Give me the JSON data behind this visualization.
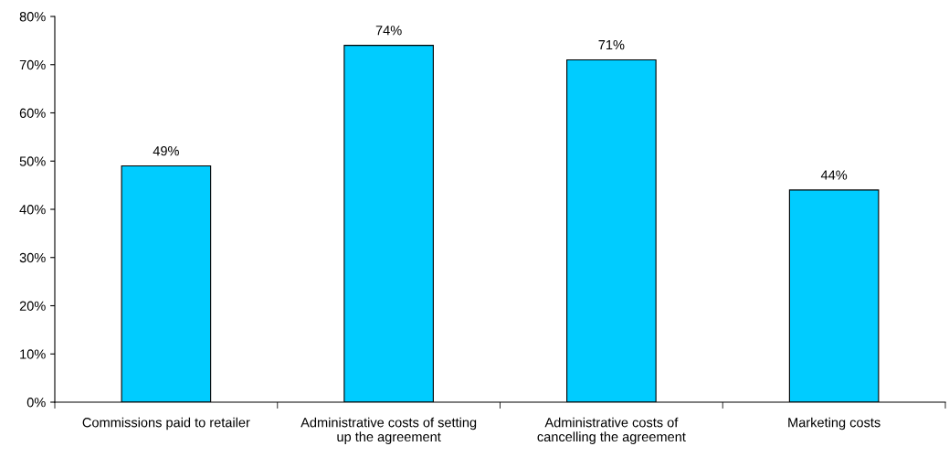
{
  "chart_data": {
    "type": "bar",
    "categories": [
      "Commissions paid to retailer",
      "Administrative costs of setting\nup the agreement",
      "Administrative costs of\ncancelling the agreement",
      "Marketing costs"
    ],
    "values": [
      49,
      74,
      71,
      44
    ],
    "value_labels": [
      "49%",
      "74%",
      "71%",
      "44%"
    ],
    "color": "#00ccff",
    "ylim": [
      0,
      80
    ],
    "yticks": [
      {
        "value": 0,
        "label": "0%"
      },
      {
        "value": 10,
        "label": "10%"
      },
      {
        "value": 20,
        "label": "20%"
      },
      {
        "value": 30,
        "label": "30%"
      },
      {
        "value": 40,
        "label": "40%"
      },
      {
        "value": 50,
        "label": "50%"
      },
      {
        "value": 60,
        "label": "60%"
      },
      {
        "value": 70,
        "label": "70%"
      },
      {
        "value": 80,
        "label": "80%"
      }
    ],
    "grid": false,
    "legend": false
  }
}
